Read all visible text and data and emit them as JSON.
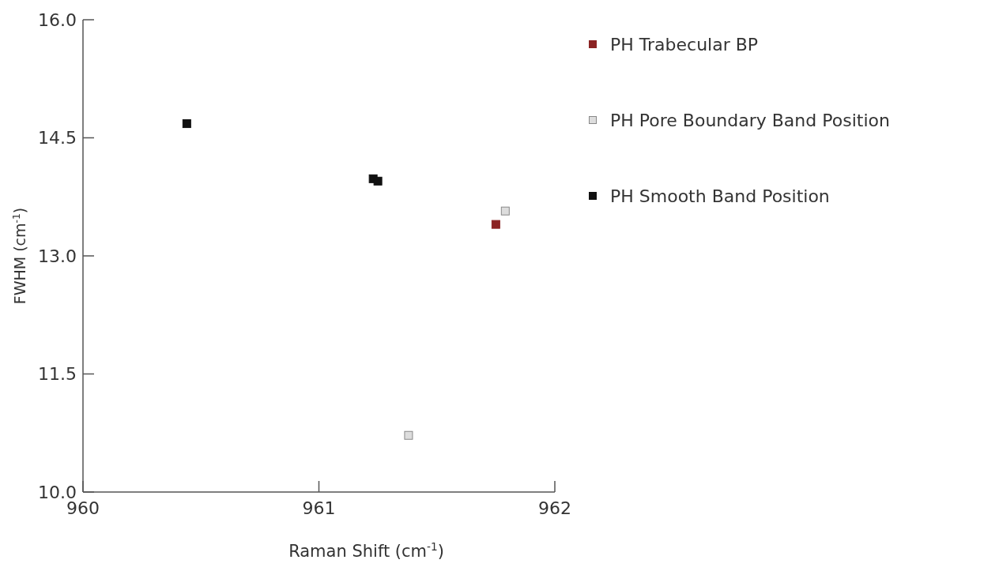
{
  "chart_data": {
    "type": "scatter",
    "xlabel": "Raman Shift (cm$^{-1}$)",
    "ylabel": "FWHM (cm$^{-1}$)",
    "xlim": [
      960,
      962
    ],
    "xticks": [
      960,
      961,
      962
    ],
    "ylim": [
      10,
      16
    ],
    "yticks": [
      {
        "value": 10,
        "label": "10.0"
      },
      {
        "value": 11.5,
        "label": "11.5"
      },
      {
        "value": 13,
        "label": "13.0"
      },
      {
        "value": 14.5,
        "label": "14.5"
      },
      {
        "value": 16,
        "label": "16.0"
      }
    ],
    "marker": "square",
    "legend": "top right",
    "grid": false,
    "series": [
      {
        "name": "PH Trabecular BP",
        "color": "#8b2323",
        "x": [
          961.75
        ],
        "values": [
          13.4
        ]
      },
      {
        "name": "PH Pore Boundary Band Position",
        "color": "#dddddd",
        "x": [
          961.79,
          961.38
        ],
        "values": [
          13.57,
          10.72
        ]
      },
      {
        "name": "PH Smooth Band Position",
        "color": "#111111",
        "x": [
          960.44,
          961.23,
          961.25
        ],
        "values": [
          14.68,
          13.98,
          13.95
        ]
      }
    ]
  }
}
